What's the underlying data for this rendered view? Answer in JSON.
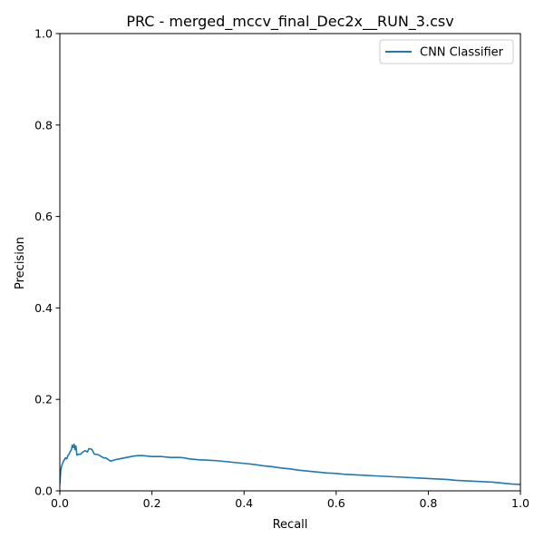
{
  "chart_data": {
    "type": "line",
    "title": "PRC - merged_mccv_final_Dec2x__RUN_3.csv",
    "xlabel": "Recall",
    "ylabel": "Precision",
    "xlim": [
      0,
      1
    ],
    "ylim": [
      0,
      1
    ],
    "xticks": [
      "0.0",
      "0.2",
      "0.4",
      "0.6",
      "0.8",
      "1.0"
    ],
    "yticks": [
      "0.0",
      "0.2",
      "0.4",
      "0.6",
      "0.8",
      "1.0"
    ],
    "grid": false,
    "legend_placement": "top-right",
    "series": [
      {
        "name": "CNN Classifier",
        "color": "#1f77b4",
        "x": [
          0.0,
          0.002,
          0.004,
          0.006,
          0.008,
          0.01,
          0.012,
          0.015,
          0.018,
          0.02,
          0.022,
          0.025,
          0.027,
          0.029,
          0.031,
          0.033,
          0.035,
          0.037,
          0.04,
          0.045,
          0.05,
          0.055,
          0.06,
          0.063,
          0.066,
          0.07,
          0.075,
          0.08,
          0.085,
          0.09,
          0.095,
          0.1,
          0.11,
          0.12,
          0.13,
          0.14,
          0.15,
          0.16,
          0.17,
          0.18,
          0.19,
          0.2,
          0.22,
          0.24,
          0.26,
          0.27,
          0.28,
          0.3,
          0.32,
          0.34,
          0.36,
          0.38,
          0.4,
          0.42,
          0.44,
          0.46,
          0.48,
          0.5,
          0.52,
          0.54,
          0.56,
          0.58,
          0.6,
          0.62,
          0.64,
          0.66,
          0.68,
          0.7,
          0.72,
          0.74,
          0.76,
          0.78,
          0.8,
          0.82,
          0.84,
          0.86,
          0.88,
          0.9,
          0.92,
          0.94,
          0.96,
          0.98,
          1.0
        ],
        "y": [
          0.015,
          0.045,
          0.055,
          0.06,
          0.065,
          0.068,
          0.072,
          0.07,
          0.078,
          0.08,
          0.085,
          0.09,
          0.1,
          0.095,
          0.102,
          0.09,
          0.098,
          0.078,
          0.08,
          0.08,
          0.085,
          0.088,
          0.085,
          0.092,
          0.092,
          0.09,
          0.08,
          0.08,
          0.078,
          0.075,
          0.072,
          0.072,
          0.065,
          0.068,
          0.07,
          0.072,
          0.074,
          0.076,
          0.077,
          0.077,
          0.076,
          0.075,
          0.075,
          0.073,
          0.073,
          0.072,
          0.07,
          0.068,
          0.067,
          0.066,
          0.064,
          0.062,
          0.06,
          0.058,
          0.055,
          0.053,
          0.05,
          0.048,
          0.045,
          0.043,
          0.041,
          0.039,
          0.038,
          0.036,
          0.035,
          0.034,
          0.033,
          0.032,
          0.031,
          0.03,
          0.029,
          0.028,
          0.027,
          0.026,
          0.025,
          0.023,
          0.022,
          0.021,
          0.02,
          0.019,
          0.017,
          0.015,
          0.014
        ]
      }
    ]
  }
}
